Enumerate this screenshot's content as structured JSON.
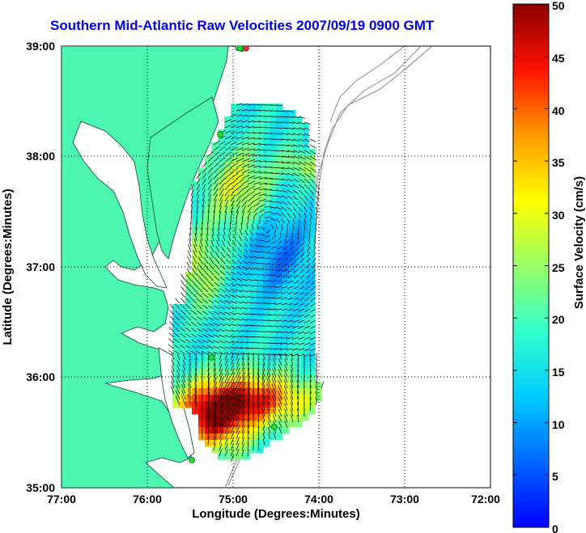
{
  "title": "Southern Mid-Atlantic Raw Velocities 2007/09/19 0900 GMT",
  "x_axis_label": "Longitude (Degrees:Minutes)",
  "y_axis_label": "Latitude (Degrees:Minutes)",
  "colorbar_label": "Surface Velocity (cm/s)",
  "x_ticks": [
    "77:00",
    "76:00",
    "75:00",
    "74:00",
    "73:00",
    "72:00"
  ],
  "y_ticks": [
    "39:00",
    "38:00",
    "37:00",
    "36:00",
    "35:00"
  ],
  "colorbar_ticks": [
    "50",
    "45",
    "40",
    "35",
    "30",
    "25",
    "20",
    "15",
    "10",
    "5",
    "0"
  ],
  "colors": {
    "land": "#4df5b0",
    "title": "#0000ee",
    "station": "#22dd22",
    "station_alt": "#ff2222"
  },
  "map": {
    "lon_range": [
      -77,
      -72
    ],
    "lat_range": [
      35,
      39
    ],
    "velocity_range_cm_s": [
      0,
      50
    ],
    "stations": [
      {
        "lon": -74.85,
        "lat": 38.98,
        "kind": "alt"
      },
      {
        "lon": -74.92,
        "lat": 38.98,
        "kind": "main"
      },
      {
        "lon": -75.15,
        "lat": 38.2,
        "kind": "main"
      },
      {
        "lon": -75.25,
        "lat": 36.18,
        "kind": "main"
      },
      {
        "lon": -74.52,
        "lat": 35.55,
        "kind": "main"
      },
      {
        "lon": -75.48,
        "lat": 35.25,
        "kind": "main"
      }
    ]
  }
}
